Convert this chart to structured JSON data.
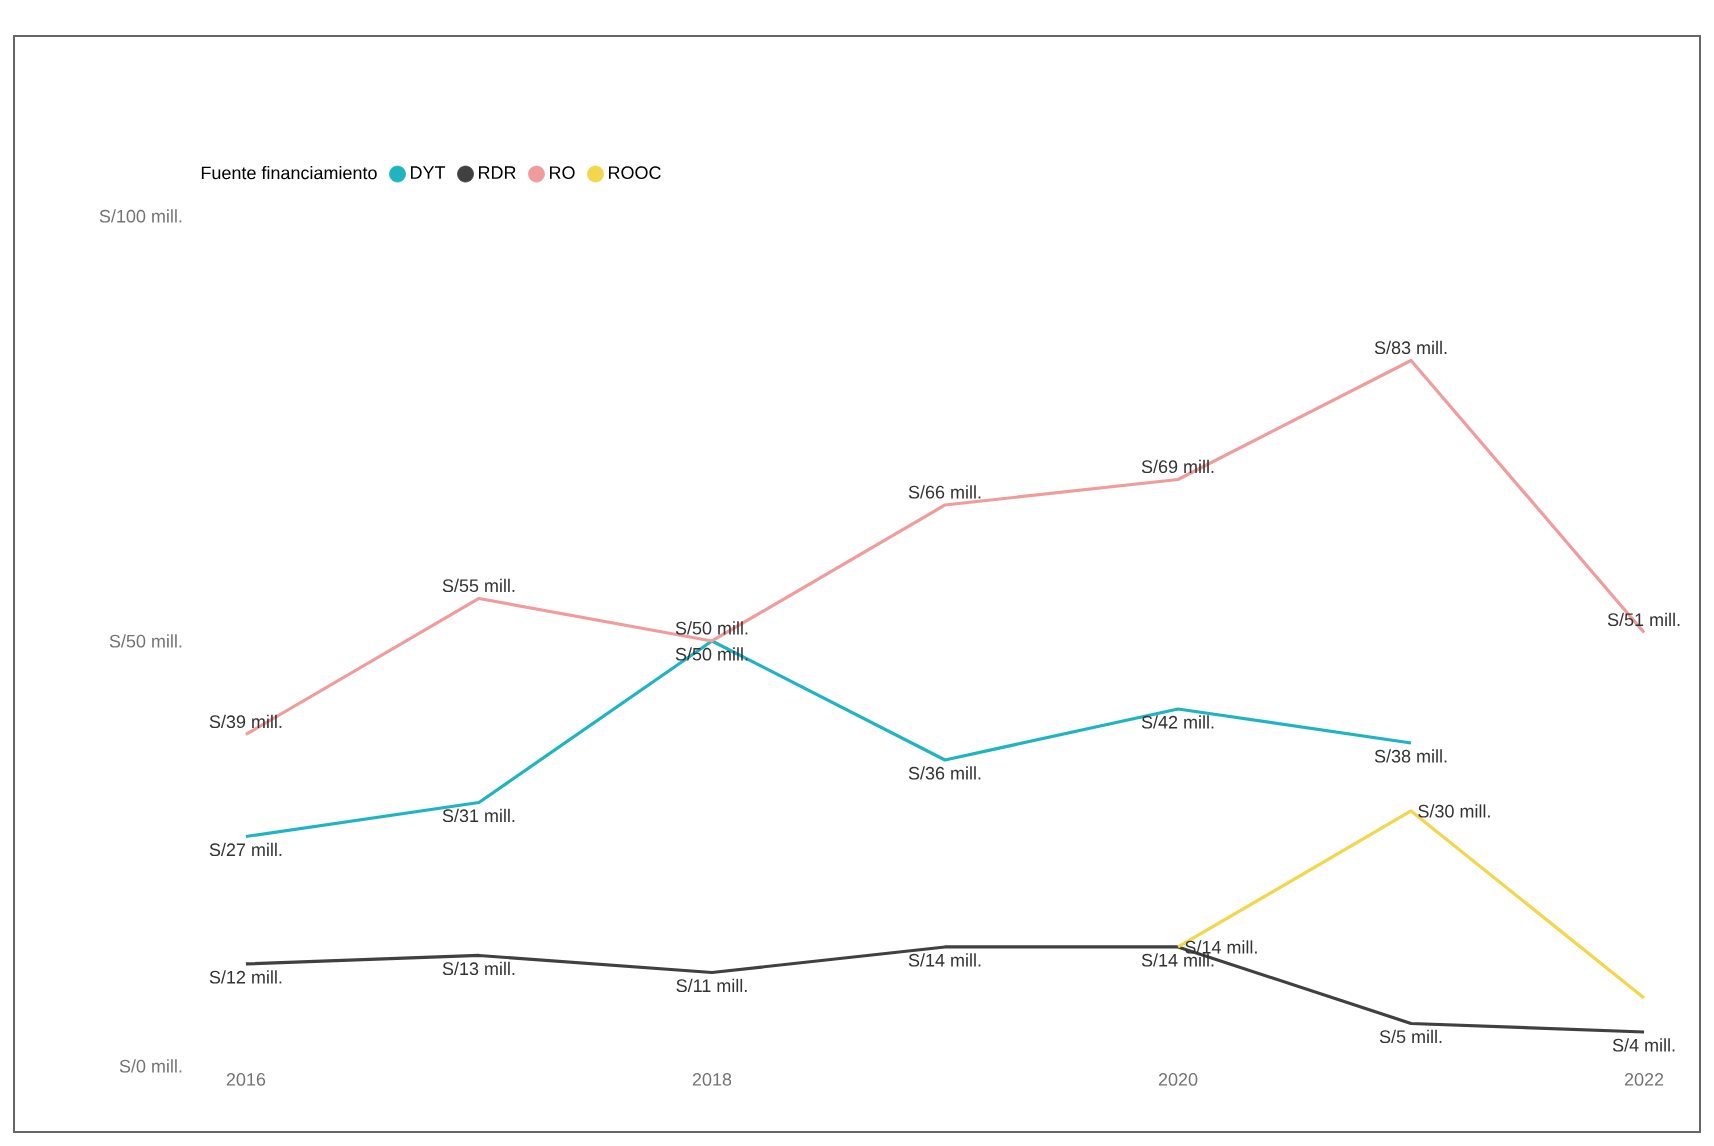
{
  "chart_data": {
    "type": "line",
    "legend_title": "Fuente financiamiento",
    "legend": "top left",
    "x": [
      2016,
      2017,
      2018,
      2019,
      2020,
      2021,
      2022
    ],
    "xlim": [
      2016,
      2022
    ],
    "xticks": [
      2016,
      2018,
      2020,
      2022
    ],
    "ylim": [
      0,
      100
    ],
    "yticks": [
      {
        "value": 0,
        "label": "S/0 mill."
      },
      {
        "value": 50,
        "label": "S/50 mill."
      },
      {
        "value": 100,
        "label": "S/100 mill."
      }
    ],
    "grid": false,
    "series": [
      {
        "name": "DYT",
        "color": "#1fb5c0",
        "values": [
          27,
          31,
          50,
          36,
          42,
          38,
          null
        ],
        "value_labels": [
          "S/27 mill.",
          "S/31 mill.",
          "S/50 mill.",
          "S/36 mill.",
          "S/42 mill.",
          "S/38 mill.",
          null
        ]
      },
      {
        "name": "RDR",
        "color": "#404040",
        "values": [
          12,
          13,
          11,
          14,
          14,
          5,
          4
        ],
        "value_labels": [
          "S/12 mill.",
          "S/13 mill.",
          "S/11 mill.",
          "S/14 mill.",
          "S/14 mill.",
          "S/5 mill.",
          "S/4 mill."
        ]
      },
      {
        "name": "RO",
        "color": "#f09c9c",
        "values": [
          39,
          55,
          50,
          66,
          69,
          83,
          51
        ],
        "value_labels": [
          "S/39 mill.",
          "S/55 mill.",
          "S/50 mill.",
          "S/66 mill.",
          "S/69 mill.",
          "S/83 mill.",
          "S/51 mill."
        ]
      },
      {
        "name": "ROOC",
        "color": "#f2d64b",
        "values": [
          null,
          null,
          null,
          null,
          14,
          30,
          8
        ],
        "value_labels": [
          null,
          null,
          null,
          null,
          "S/14 mill.",
          "S/30 mill.",
          null
        ]
      }
    ]
  }
}
